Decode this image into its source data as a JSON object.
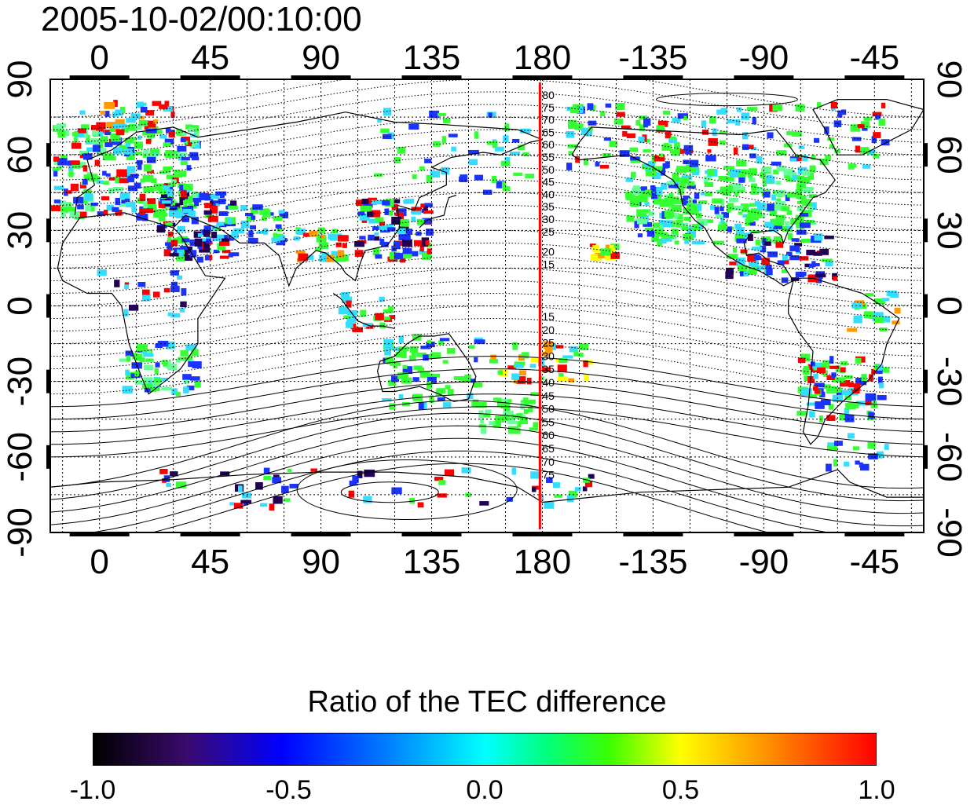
{
  "title": "2005-10-02/00:10:00",
  "map": {
    "top_lon_ticks": [
      "0",
      "45",
      "90",
      "135",
      "180",
      "-135",
      "-90",
      "-45"
    ],
    "bottom_lon_ticks": [
      "0",
      "45",
      "90",
      "135",
      "180",
      "-135",
      "-90",
      "-45"
    ],
    "left_lat_ticks": [
      "90",
      "60",
      "30",
      "0",
      "-30",
      "-60",
      "-90"
    ],
    "right_lat_ticks": [
      "90",
      "60",
      "30",
      "0",
      "-30",
      "-60",
      "-90"
    ],
    "lon_tick_values": [
      0,
      45,
      90,
      135,
      180,
      225,
      270,
      315
    ],
    "lat_tick_values": [
      90,
      60,
      30,
      0,
      -30,
      -60,
      -90
    ],
    "lon_range": [
      -20,
      335
    ],
    "lat_range": [
      -90,
      90
    ],
    "grid": "on",
    "meridian_line": {
      "lon": 179,
      "color": "#ff0000"
    },
    "north_contour_labels": [
      "80",
      "75",
      "70",
      "65",
      "60",
      "55",
      "50",
      "45",
      "40",
      "35",
      "30",
      "25",
      "20",
      "15"
    ],
    "south_contour_labels": [
      "15",
      "20",
      "25",
      "30",
      "35",
      "40",
      "45",
      "50",
      "55",
      "60",
      "65",
      "70",
      "75"
    ],
    "data_colors": {
      "green": "#33ff33",
      "cyan": "#33ddff",
      "blue": "#1a33ff",
      "dark": "#220055",
      "yellow": "#ffff00",
      "orange": "#ff9900",
      "red": "#ff0000",
      "lightgreen": "#66ff99"
    }
  },
  "colorbar": {
    "title": "Ratio of the TEC difference",
    "ticks": [
      "-1.0",
      "-0.5",
      "0.0",
      "0.5",
      "1.0"
    ],
    "tick_values": [
      -1.0,
      -0.5,
      0.0,
      0.5,
      1.0
    ],
    "range": [
      -1.0,
      1.0
    ]
  }
}
